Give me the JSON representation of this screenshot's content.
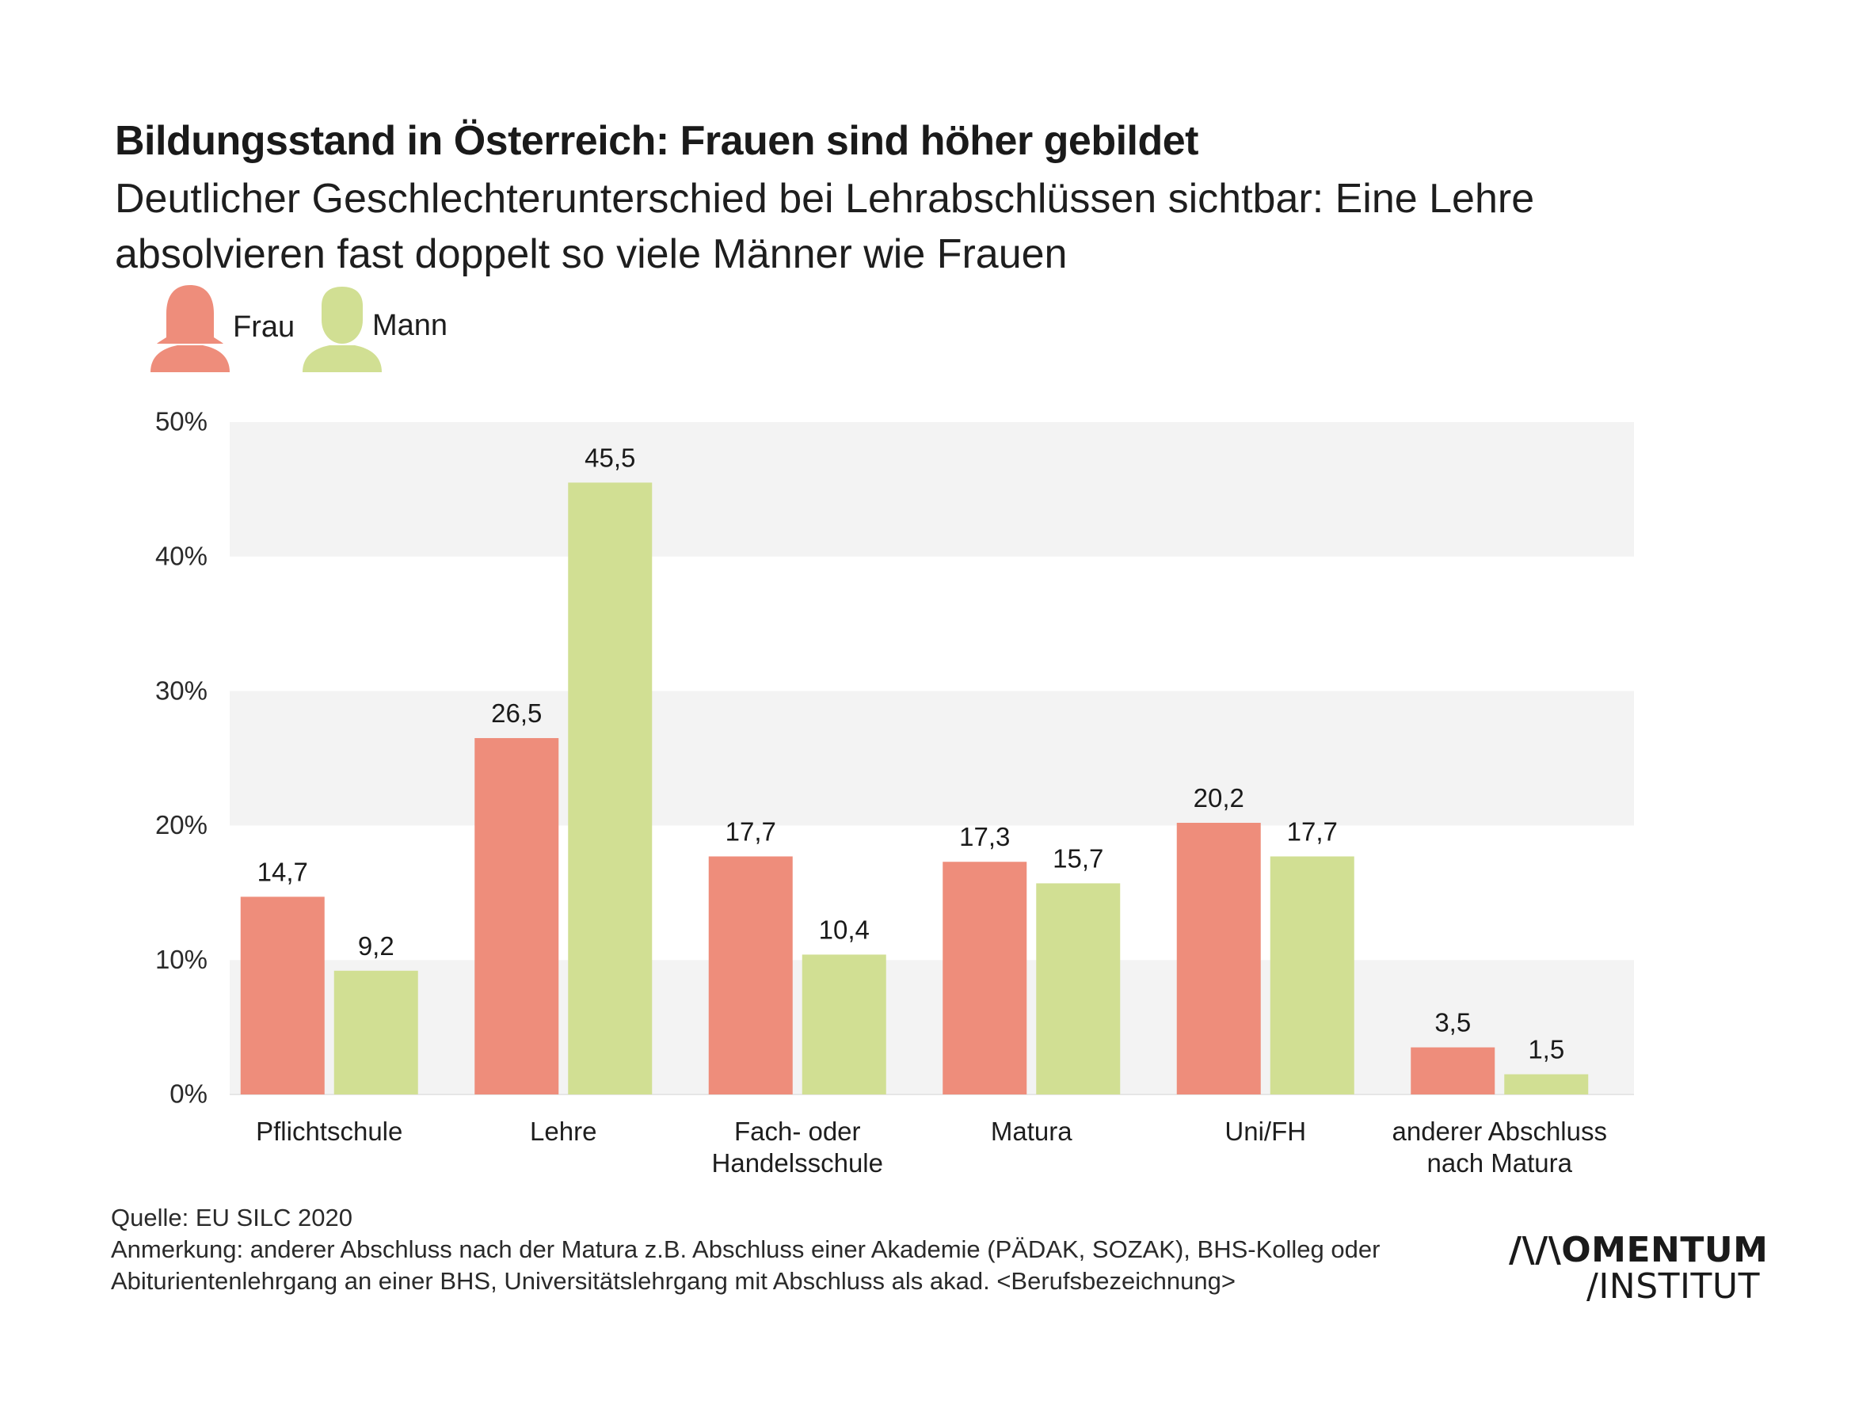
{
  "title": "Bildungsstand in Österreich: Frauen sind höher gebildet",
  "subtitle": "Deutlicher Geschlechterunterschied bei Lehrabschlüssen sichtbar: Eine Lehre absolvieren fast doppelt so viele Männer wie Frauen",
  "legend": [
    {
      "label": "Frau",
      "icon": "woman-icon",
      "color": "#ee8d7b"
    },
    {
      "label": "Mann",
      "icon": "man-icon",
      "color": "#d1df93"
    }
  ],
  "chart_data": {
    "type": "bar",
    "categories": [
      [
        "Pflichtschule"
      ],
      [
        "Lehre"
      ],
      [
        "Fach- oder",
        "Handelsschule"
      ],
      [
        "Matura"
      ],
      [
        "Uni/FH"
      ],
      [
        "anderer Abschluss",
        "nach Matura"
      ]
    ],
    "series": [
      {
        "name": "Frau",
        "color": "#ee8d7b",
        "values": [
          14.7,
          26.5,
          17.7,
          17.3,
          20.2,
          3.5
        ],
        "labels": [
          "14,7",
          "26,5",
          "17,7",
          "17,3",
          "20,2",
          "3,5"
        ]
      },
      {
        "name": "Mann",
        "color": "#d1df93",
        "values": [
          9.2,
          45.5,
          10.4,
          15.7,
          17.7,
          1.5
        ],
        "labels": [
          "9,2",
          "45,5",
          "10,4",
          "15,7",
          "17,7",
          "1,5"
        ]
      }
    ],
    "yticks": [
      "0%",
      "10%",
      "20%",
      "30%",
      "40%",
      "50%"
    ],
    "ylim": [
      0,
      50
    ],
    "xlabel": "",
    "ylabel": "",
    "band_color": "#f3f3f3",
    "legend_position": "top-left"
  },
  "footer": {
    "source": "Quelle: EU SILC 2020",
    "note_line1": "Anmerkung: anderer Abschluss nach der Matura z.B. Abschluss einer Akademie (PÄDAK, SOZAK), BHS-Kolleg oder",
    "note_line2": "Abiturientenlehrgang an einer BHS, Universitätslehrgang mit Abschluss als akad. <Berufsbezeichnung>"
  },
  "logo": {
    "line1": "/\\/\\OMENTUM",
    "line2": "/INSTITUT"
  }
}
